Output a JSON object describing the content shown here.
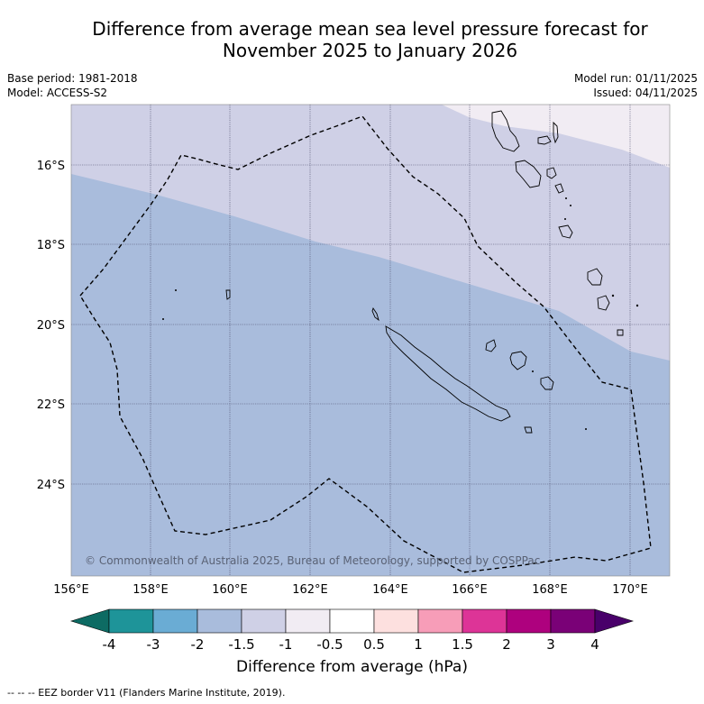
{
  "title": {
    "line1": "Difference from average mean sea level pressure forecast for",
    "line2": "November 2025 to January 2026"
  },
  "meta": {
    "base_period": "Base period: 1981-2018",
    "model": "Model: ACCESS-S2",
    "model_run": "Model run: 01/11/2025",
    "issued": "Issued: 04/11/2025"
  },
  "map": {
    "lon_labels": [
      "156°E",
      "158°E",
      "160°E",
      "162°E",
      "164°E",
      "166°E",
      "168°E",
      "170°E"
    ],
    "lat_labels": [
      "16°S",
      "18°S",
      "20°S",
      "22°S",
      "24°S"
    ],
    "copyright": "© Commonwealth of Australia 2025, Bureau of Meteorology, supported by COSPPac"
  },
  "colorbar": {
    "title": "Difference from average (hPa)",
    "ticks": [
      "-4",
      "-3",
      "-2",
      "-1.5",
      "-1",
      "-0.5",
      "0.5",
      "1",
      "1.5",
      "2",
      "3",
      "4"
    ],
    "colors": [
      "#0d6b63",
      "#1e9499",
      "#6aacd4",
      "#a9bcdc",
      "#cfd0e6",
      "#f1ecf3",
      "#ffffff",
      "#fde0df",
      "#f79db8",
      "#dd3497",
      "#ae017e",
      "#7a0177",
      "#49006a"
    ]
  },
  "footnote": "--  --  -- EEZ border V11 (Flanders Marine Institute, 2019)."
}
